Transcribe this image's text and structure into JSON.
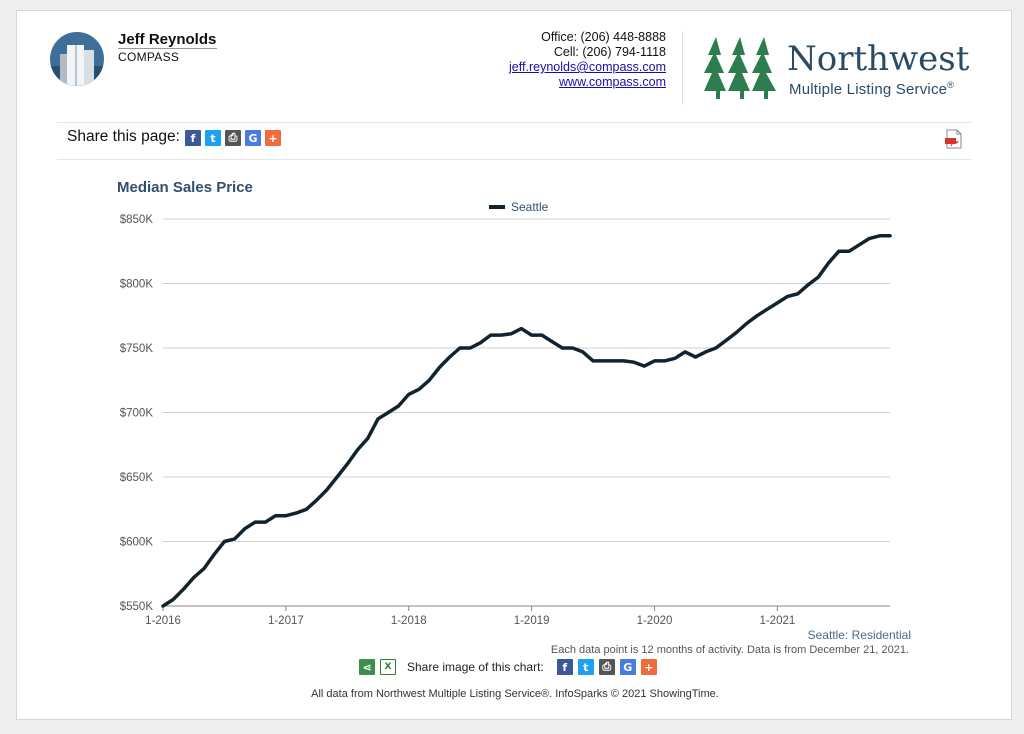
{
  "agent": {
    "name": "Jeff Reynolds",
    "company": "COMPASS",
    "office": "Office: (206) 448-8888",
    "cell": "Cell: (206) 794-1118",
    "email": "jeff.reynolds@compass.com",
    "website": "www.compass.com"
  },
  "brand": {
    "name": "Northwest",
    "subtitle": "Multiple Listing Service",
    "mark": "®",
    "color": "#2e7d4f",
    "text_color": "#2c4a66"
  },
  "share": {
    "label": "Share this page:",
    "icons": [
      "facebook-icon",
      "twitter-icon",
      "print-icon",
      "google-icon",
      "plus-icon"
    ]
  },
  "chart_meta": {
    "source_label": "Seattle: Residential",
    "note": "Each data point is 12 months of activity. Data is from December 21, 2021.",
    "share_label": "Share image of this chart:"
  },
  "footer": "All data from Northwest Multiple Listing Service®. InfoSparks © 2021 ShowingTime.",
  "chart_data": {
    "type": "line",
    "title": "Median Sales Price",
    "xlabel": "",
    "ylabel": "",
    "legend_position": "top-center",
    "grid": true,
    "ylim": [
      550000,
      850000
    ],
    "yticks": [
      "$550K",
      "$600K",
      "$650K",
      "$700K",
      "$750K",
      "$800K",
      "$850K"
    ],
    "xticks": [
      "1-2016",
      "1-2017",
      "1-2018",
      "1-2019",
      "1-2020",
      "1-2021"
    ],
    "x": [
      "1-2016",
      "2-2016",
      "3-2016",
      "4-2016",
      "5-2016",
      "6-2016",
      "7-2016",
      "8-2016",
      "9-2016",
      "10-2016",
      "11-2016",
      "12-2016",
      "1-2017",
      "2-2017",
      "3-2017",
      "4-2017",
      "5-2017",
      "6-2017",
      "7-2017",
      "8-2017",
      "9-2017",
      "10-2017",
      "11-2017",
      "12-2017",
      "1-2018",
      "2-2018",
      "3-2018",
      "4-2018",
      "5-2018",
      "6-2018",
      "7-2018",
      "8-2018",
      "9-2018",
      "10-2018",
      "11-2018",
      "12-2018",
      "1-2019",
      "2-2019",
      "3-2019",
      "4-2019",
      "5-2019",
      "6-2019",
      "7-2019",
      "8-2019",
      "9-2019",
      "10-2019",
      "11-2019",
      "12-2019",
      "1-2020",
      "2-2020",
      "3-2020",
      "4-2020",
      "5-2020",
      "6-2020",
      "7-2020",
      "8-2020",
      "9-2020",
      "10-2020",
      "11-2020",
      "12-2020",
      "1-2021",
      "2-2021",
      "3-2021",
      "4-2021",
      "5-2021",
      "6-2021",
      "7-2021",
      "8-2021",
      "9-2021",
      "10-2021",
      "11-2021",
      "12-2021"
    ],
    "series": [
      {
        "name": "Seattle",
        "color": "#10232e",
        "values": [
          550000,
          555000,
          563000,
          572000,
          579000,
          590000,
          600000,
          602000,
          610000,
          615000,
          615000,
          620000,
          620000,
          622000,
          625000,
          632000,
          640000,
          650000,
          660000,
          671000,
          680000,
          695000,
          700000,
          705000,
          714000,
          718000,
          725000,
          735000,
          743000,
          750000,
          750000,
          754000,
          760000,
          760000,
          761000,
          765000,
          760000,
          760000,
          755000,
          750000,
          750000,
          747000,
          740000,
          740000,
          740000,
          740000,
          739000,
          736000,
          740000,
          740000,
          742000,
          747000,
          743000,
          747000,
          750000,
          756000,
          762000,
          769000,
          775000,
          780000,
          785000,
          790000,
          792000,
          799000,
          805000,
          816000,
          825000,
          825000,
          830000,
          835000,
          837000,
          837000
        ]
      }
    ]
  }
}
